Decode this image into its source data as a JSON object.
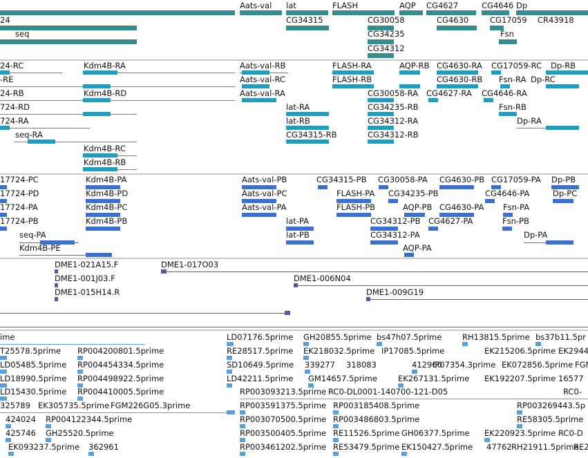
{
  "colors": {
    "gene": "#2f8f8f",
    "transcript": "#1e9fc0",
    "cds": "#3b6fd0",
    "clone": "#6a4fa6",
    "est": "#5aa0d8",
    "divider": "#c9c9c9"
  },
  "tracks": {
    "genes": {
      "labels": [
        "Aats-val",
        "lat",
        "FLASH",
        "AQP",
        "CG4627",
        "CG4646",
        "Dp",
        "24",
        "CG34315",
        "CG30058",
        "CG4630",
        "CG17059",
        "CR43918",
        "seq",
        "CG34235",
        "Fsn",
        "CG34312"
      ]
    },
    "transcripts": {
      "labels": [
        "24-RC",
        "Kdm4B-RA",
        "Aats-val-RB",
        "FLASH-RA",
        "AQP-RB",
        "CG4630-RA",
        "CG17059-RC",
        "Dp-RB",
        "-RE",
        "Aats-val-RC",
        "FLASH-RB",
        "CG4630-RB",
        "Fsn-RA",
        "Dp-RC",
        "24-RB",
        "Kdm4B-RD",
        "Aats-val-RA",
        "CG30058-RA",
        "CG4627-RA",
        "CG4646-RA",
        "724-RD",
        "lat-RA",
        "CG34235-RB",
        "Fsn-RB",
        "724-RA",
        "lat-RB",
        "CG34312-RA",
        "Dp-RA",
        "seq-RA",
        "CG34315-RB",
        "CG34312-RB",
        "Kdm4B-RC",
        "Kdm4B-RB"
      ]
    },
    "proteins": {
      "labels": [
        "17724-PC",
        "Kdm4B-PA",
        "Aats-val-PB",
        "CG34315-PB",
        "CG30058-PA",
        "CG4630-PB",
        "CG17059-PA",
        "Dp-PB",
        "17724-PD",
        "Kdm4B-PD",
        "Aats-val-PC",
        "FLASH-PA",
        "CG34235-PB",
        "CG4646-PA",
        "Dp-PC",
        "17724-PA",
        "Kdm4B-PC",
        "Aats-val-PA",
        "FLASH-PB",
        "AQP-PB",
        "CG4630-PA",
        "Fsn-PA",
        "17724-PB",
        "Kdm4B-PB",
        "lat-PA",
        "CG34312-PB",
        "CG4627-PA",
        "Fsn-PB",
        "seq-PA",
        "lat-PB",
        "CG34312-PA",
        "Dp-PA",
        "Kdm4B-PE",
        "AQP-PA"
      ]
    },
    "clones": {
      "labels": [
        "DME1-021A15.F",
        "DME1-017O03",
        "DME1-001J03.F",
        "DME1-006N04",
        "DME1-015H14.R",
        "DME1-009G19"
      ]
    },
    "ests": {
      "labels": [
        "ime",
        "LD07176.5prime",
        "GH20855.5prime",
        "bs47h07.5prime",
        "RH13815.5prime",
        "bs37b11.5pr",
        "T25578.5prime",
        "RP004200801.5prime",
        "RE28517.5prime",
        "EK218032.5prime",
        "IP17085.5prime",
        "EK215206.5prime",
        "EK2944",
        "LD05485.5prime",
        "RP004454334.5prime",
        "SD10649.5prime",
        "339277",
        "318083",
        "412960",
        "IP07354.3prime",
        "EK072856.5prime",
        "FGM",
        "LD18990.5prime",
        "RP004498922.5prime",
        "LD42211.5prime",
        "GM14657.5prime",
        "EK267131.5prime",
        "EK192207.5prime",
        "16577",
        "LD15430.5prime",
        "RP004410005.5prime",
        "RP003093213.5prime",
        "RC0-DL0001-140700-121-D05",
        "RC0-",
        "325789",
        "EK305735.5prime",
        "FGM226G05.3prime",
        "RP003591375.5prime",
        "RP003185408.5prime",
        "RP003269443.5p",
        "424024",
        "RP004122344.5prime",
        "RP003070500.5prime",
        "RP003486803.5prime",
        "RE58305.5prime",
        "425746",
        "GH25520.5prime",
        "RP003500405.5prime",
        "RE11526.5prime",
        "GH06377.5prime",
        "EK220923.5prime",
        "RC0-D",
        "EK093237.5prime",
        "362961",
        "RP003461202.5prime",
        "RE53479.5prime",
        "EK150427.5prime",
        "47762",
        "RH21911.5prime",
        "RE2"
      ]
    }
  }
}
